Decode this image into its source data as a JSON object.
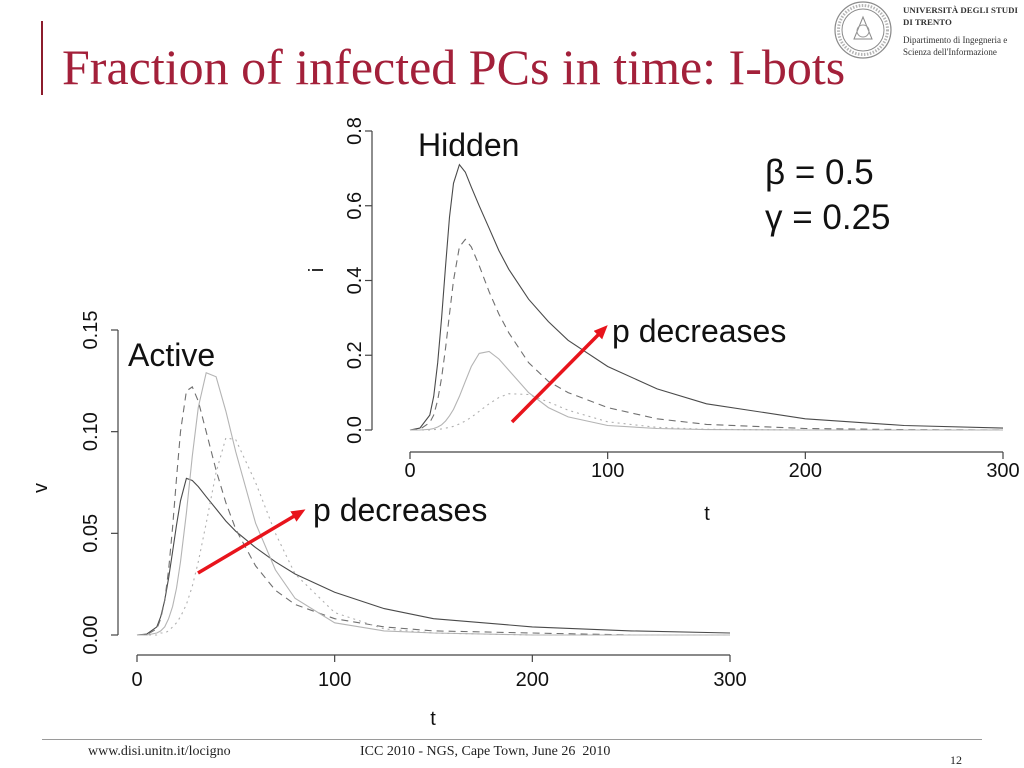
{
  "slide": {
    "title": "Fraction of infected PCs in time: I-bots",
    "title_color": "#A3203A",
    "accent_bar_color": "#8C1C2C"
  },
  "logo": {
    "seal_icon": "university-seal-icon",
    "line1": "UNIVERSITÀ DEGLI STUDI",
    "line2": "DI TRENTO",
    "line3": "Dipartimento di Ingegneria e",
    "line4": "Scienza dell'Informazione"
  },
  "footer": {
    "url": "www.disi.unitn.it/locigno",
    "event": "ICC 2010 - NGS, Cape Town, June 26  2010",
    "page": "12"
  },
  "chart_data": [
    {
      "type": "line",
      "annotation": "Hidden",
      "xlabel": "t",
      "ylabel": "i",
      "xlim": [
        0,
        300
      ],
      "ylim": [
        0,
        0.8
      ],
      "xticks": [
        "0",
        "100",
        "200",
        "300"
      ],
      "yticks": [
        "0.0",
        "0.2",
        "0.4",
        "0.6",
        "0.8"
      ],
      "grid": false,
      "params": [
        "β = 0.5",
        "γ = 0.25"
      ],
      "arrow_label": "p decreases",
      "arrow_color": "#E8141C",
      "x": [
        0,
        5,
        10,
        12,
        14,
        16,
        18,
        20,
        22,
        25,
        28,
        31,
        35,
        40,
        45,
        50,
        60,
        70,
        80,
        100,
        125,
        150,
        200,
        250,
        300
      ],
      "series": [
        {
          "style": "solid",
          "color": "#4A4A4A",
          "values": [
            0,
            0.005,
            0.04,
            0.09,
            0.18,
            0.3,
            0.44,
            0.57,
            0.66,
            0.71,
            0.69,
            0.65,
            0.6,
            0.54,
            0.48,
            0.43,
            0.35,
            0.29,
            0.24,
            0.17,
            0.11,
            0.07,
            0.03,
            0.012,
            0.005
          ]
        },
        {
          "style": "dashed",
          "color": "#707070",
          "values": [
            0,
            0.002,
            0.02,
            0.04,
            0.08,
            0.14,
            0.22,
            0.31,
            0.4,
            0.49,
            0.51,
            0.49,
            0.44,
            0.37,
            0.31,
            0.26,
            0.18,
            0.13,
            0.1,
            0.06,
            0.03,
            0.015,
            0.004,
            0.001,
            0
          ]
        },
        {
          "style": "solid",
          "color": "#B4B4B4",
          "values": [
            0,
            0,
            0.002,
            0.004,
            0.008,
            0.014,
            0.024,
            0.038,
            0.055,
            0.09,
            0.13,
            0.17,
            0.205,
            0.21,
            0.19,
            0.16,
            0.1,
            0.06,
            0.035,
            0.012,
            0.004,
            0.001,
            0,
            0,
            0
          ]
        },
        {
          "style": "dotted",
          "color": "#B0B0B0",
          "values": [
            0,
            0,
            0,
            0.001,
            0.002,
            0.003,
            0.005,
            0.007,
            0.01,
            0.016,
            0.024,
            0.034,
            0.05,
            0.07,
            0.087,
            0.097,
            0.095,
            0.075,
            0.053,
            0.022,
            0.007,
            0.002,
            0,
            0,
            0
          ]
        }
      ]
    },
    {
      "type": "line",
      "annotation": "Active",
      "xlabel": "t",
      "ylabel": "v",
      "xlim": [
        0,
        300
      ],
      "ylim": [
        0,
        0.15
      ],
      "xticks": [
        "0",
        "100",
        "200",
        "300"
      ],
      "yticks": [
        "0.00",
        "0.05",
        "0.10",
        "0.15"
      ],
      "grid": false,
      "arrow_label": "p decreases",
      "arrow_color": "#E8141C",
      "x": [
        0,
        5,
        10,
        12,
        14,
        16,
        18,
        20,
        22,
        25,
        28,
        31,
        35,
        40,
        45,
        50,
        60,
        70,
        80,
        100,
        125,
        150,
        200,
        250,
        300
      ],
      "series": [
        {
          "style": "solid",
          "color": "#4A4A4A",
          "values": [
            0,
            0.0005,
            0.004,
            0.009,
            0.017,
            0.028,
            0.041,
            0.054,
            0.066,
            0.077,
            0.076,
            0.073,
            0.068,
            0.062,
            0.056,
            0.051,
            0.043,
            0.036,
            0.03,
            0.021,
            0.013,
            0.008,
            0.004,
            0.002,
            0.001
          ]
        },
        {
          "style": "dashed",
          "color": "#707070",
          "values": [
            0,
            0.0002,
            0.003,
            0.008,
            0.017,
            0.032,
            0.053,
            0.077,
            0.1,
            0.12,
            0.122,
            0.115,
            0.1,
            0.081,
            0.065,
            0.052,
            0.034,
            0.022,
            0.015,
            0.008,
            0.004,
            0.002,
            0.001,
            0,
            0
          ]
        },
        {
          "style": "solid",
          "color": "#B4B4B4",
          "values": [
            0,
            0,
            0.001,
            0.002,
            0.004,
            0.008,
            0.014,
            0.023,
            0.036,
            0.06,
            0.088,
            0.112,
            0.129,
            0.127,
            0.11,
            0.09,
            0.055,
            0.032,
            0.018,
            0.006,
            0.002,
            0.001,
            0,
            0,
            0
          ]
        },
        {
          "style": "dotted",
          "color": "#B0B0B0",
          "values": [
            0,
            0,
            0,
            0.001,
            0.001,
            0.002,
            0.004,
            0.006,
            0.009,
            0.015,
            0.024,
            0.036,
            0.055,
            0.08,
            0.097,
            0.096,
            0.075,
            0.05,
            0.03,
            0.011,
            0.003,
            0.001,
            0,
            0,
            0
          ]
        }
      ]
    }
  ]
}
